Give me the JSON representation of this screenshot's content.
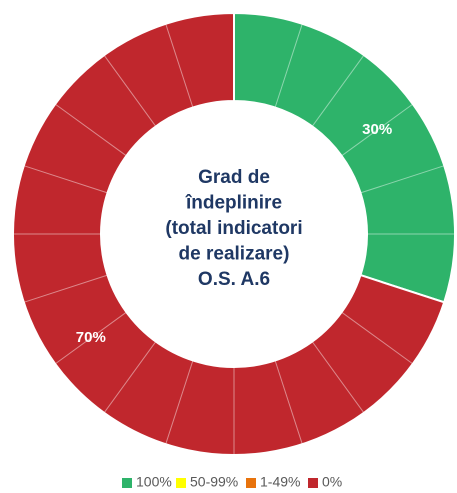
{
  "chart_data": {
    "type": "donut",
    "title": [
      "Grad de",
      "îndeplinire",
      "(total indicatori",
      "de realizare)",
      "O.S. A.6"
    ],
    "categories": [
      "100%",
      "50-99%",
      "1-49%",
      "0%"
    ],
    "values": [
      30,
      0,
      0,
      70
    ],
    "value_labels": [
      "30%",
      null,
      null,
      "70%"
    ],
    "colors": [
      "#2eb36a",
      "#ffff00",
      "#e8730c",
      "#c0272d"
    ],
    "legend": "bottom"
  }
}
